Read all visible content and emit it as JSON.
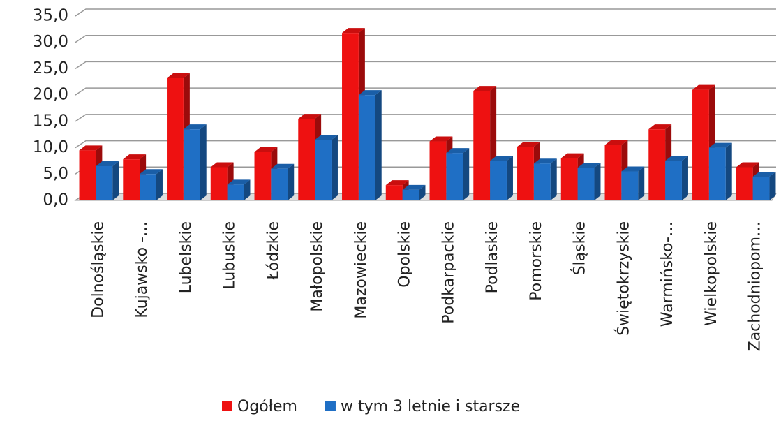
{
  "chart_data": {
    "type": "bar3d",
    "categories": [
      "Dolnośląskie",
      "Kujawsko -…",
      "Lubelskie",
      "Lubuskie",
      "Łódzkie",
      "Małopolskie",
      "Mazowieckie",
      "Opolskie",
      "Podkarpackie",
      "Podlaskie",
      "Pomorskie",
      "Śląskie",
      "Świętokrzyskie",
      "Warmińsko-…",
      "Wielkopolskie",
      "Zachodniopom…"
    ],
    "series": [
      {
        "name": "Ogółem",
        "color": "#ee1111",
        "values": [
          9.5,
          7.8,
          23.2,
          6.3,
          9.2,
          15.5,
          31.8,
          2.9,
          11.2,
          20.8,
          10.2,
          8.0,
          10.5,
          13.5,
          21.0,
          6.3
        ]
      },
      {
        "name": "w tym 3 letnie i starsze",
        "color": "#1f6fc5",
        "values": [
          6.5,
          5.0,
          13.5,
          3.0,
          6.0,
          11.5,
          20.0,
          2.0,
          9.0,
          7.5,
          7.0,
          6.2,
          5.5,
          7.5,
          10.0,
          4.5
        ]
      }
    ],
    "ylim": [
      0,
      35
    ],
    "yticks": [
      {
        "value": 0,
        "label": "0,0"
      },
      {
        "value": 5,
        "label": "5,0"
      },
      {
        "value": 10,
        "label": "10,0"
      },
      {
        "value": 15,
        "label": "15,0"
      },
      {
        "value": 20,
        "label": "20,0"
      },
      {
        "value": 25,
        "label": "25,0"
      },
      {
        "value": 30,
        "label": "30,0"
      },
      {
        "value": 35,
        "label": "35,0"
      }
    ],
    "grid": true,
    "legend": "bottom"
  }
}
